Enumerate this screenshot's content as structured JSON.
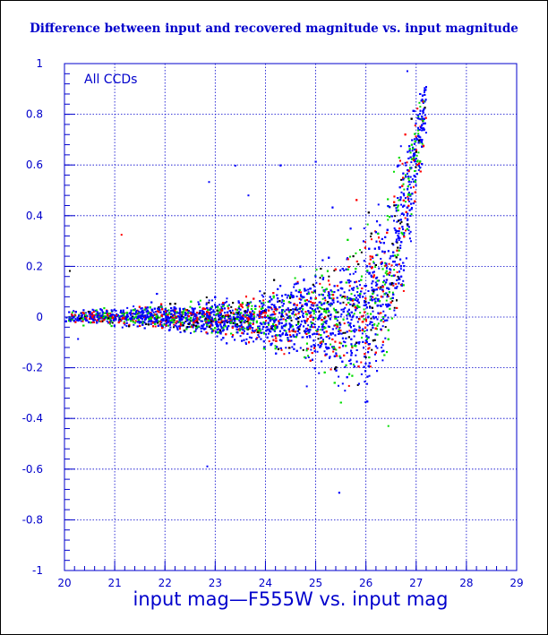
{
  "chart_data": {
    "type": "scatter",
    "title": "Difference between input and recovered magnitude vs. input magnitude",
    "xlabel": "input mag—F555W vs. input mag",
    "ylabel": "",
    "annotation": "All CCDs",
    "xlim": [
      20,
      29
    ],
    "ylim": [
      -1,
      1
    ],
    "x_ticks": [
      20,
      21,
      22,
      23,
      24,
      25,
      26,
      27,
      28,
      29
    ],
    "y_ticks": [
      1,
      0.8,
      0.6,
      0.4,
      0.2,
      0,
      -0.2,
      -0.4,
      -0.6,
      -0.8,
      -1
    ],
    "grid": true,
    "series_colors": [
      "#0000ff",
      "#00dd00",
      "#ff0000",
      "#000000"
    ],
    "envelope": {
      "mag": [
        20.0,
        21.0,
        22.0,
        23.0,
        24.0,
        24.5,
        25.0,
        25.5,
        26.0,
        26.3,
        26.6,
        26.9,
        27.2
      ],
      "lower": [
        -0.03,
        -0.04,
        -0.06,
        -0.09,
        -0.14,
        -0.18,
        -0.24,
        -0.34,
        -0.38,
        -0.3,
        -0.1,
        0.25,
        0.7
      ],
      "upper": [
        0.03,
        0.04,
        0.06,
        0.08,
        0.12,
        0.17,
        0.24,
        0.32,
        0.42,
        0.52,
        0.62,
        0.82,
        1.0
      ]
    }
  }
}
